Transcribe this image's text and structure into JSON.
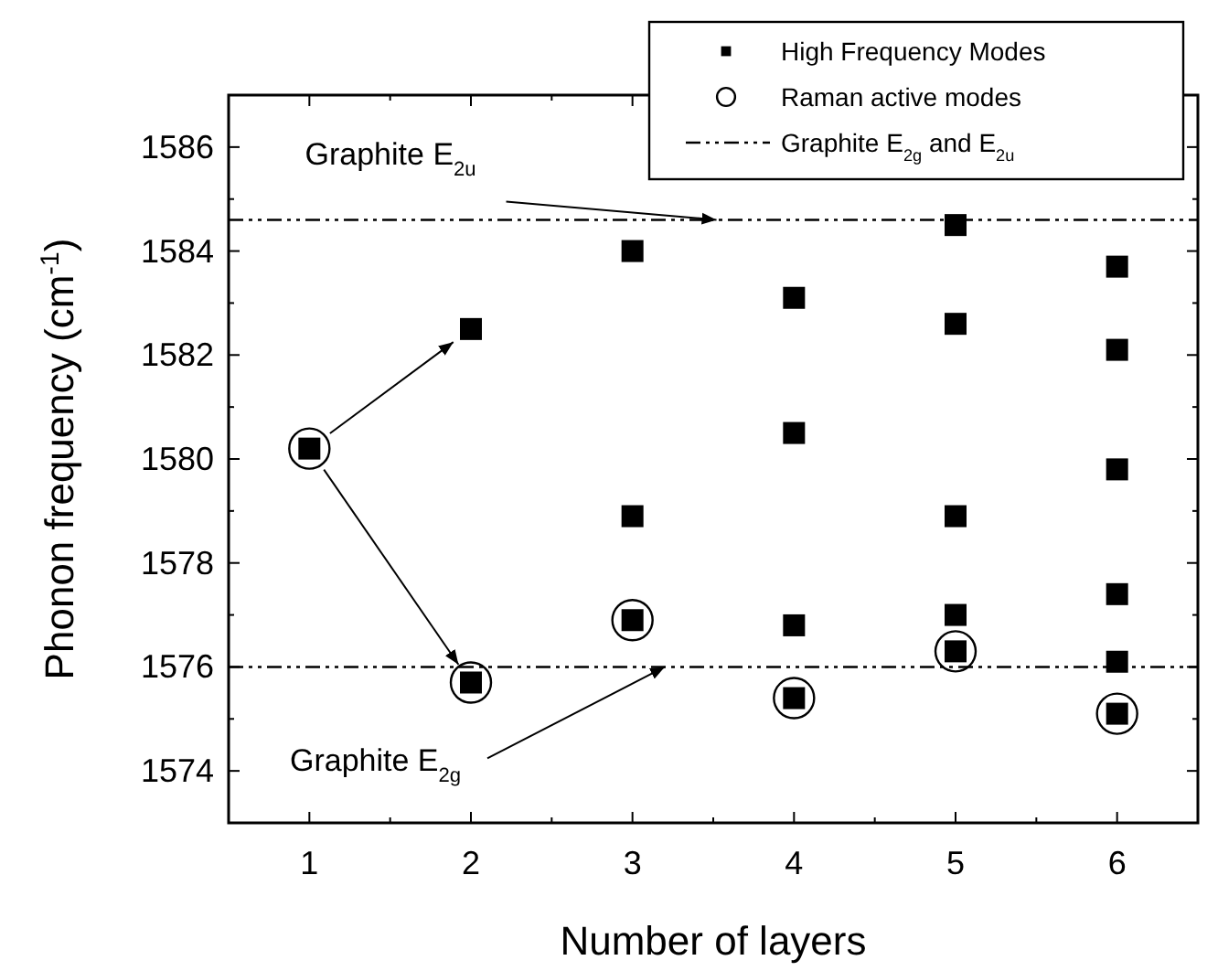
{
  "chart_data": {
    "type": "scatter",
    "xlabel": "Number of layers",
    "ylabel": "Phonon frequency (cm$^{-1}$)",
    "xlim": [
      0.5,
      6.5
    ],
    "xticks": [
      1,
      2,
      3,
      4,
      5,
      6
    ],
    "ylim": [
      1573,
      1587
    ],
    "yticks": [
      1574,
      1576,
      1578,
      1580,
      1582,
      1584,
      1586
    ],
    "legend": "top right",
    "series": [
      {
        "name": "High Frequency Modes",
        "color": "#000000",
        "marker": "square",
        "x": [
          1,
          2,
          2,
          3,
          3,
          3,
          4,
          4,
          4,
          4,
          5,
          5,
          5,
          5,
          5,
          6,
          6,
          6,
          6,
          6,
          6
        ],
        "values": [
          1580.2,
          1582.5,
          1575.7,
          1584.0,
          1578.9,
          1576.9,
          1583.1,
          1580.5,
          1576.8,
          1575.4,
          1584.5,
          1582.6,
          1578.9,
          1577.0,
          1576.3,
          1583.7,
          1582.1,
          1579.8,
          1577.4,
          1576.1,
          1575.1
        ]
      },
      {
        "name": "Raman active modes",
        "color": "#000000",
        "marker": "circle",
        "x": [
          1,
          2,
          3,
          4,
          5,
          6
        ],
        "values": [
          1580.2,
          1575.7,
          1576.9,
          1575.4,
          1576.3,
          1575.1
        ]
      }
    ],
    "ref_lines": [
      {
        "axis": "y",
        "value": 1584.6,
        "label": "Graphite E$_{2g}$ and E$_{2u}$",
        "color": "#000000"
      },
      {
        "axis": "y",
        "value": 1576.0,
        "color": "#000000"
      }
    ],
    "annotations": [
      {
        "text": "Graphite E$_{2u}$",
        "x": 3.52,
        "y": 1584.6
      },
      {
        "text": "Graphite E$_{2g}$",
        "x": 3.2,
        "y": 1576.0
      }
    ]
  }
}
